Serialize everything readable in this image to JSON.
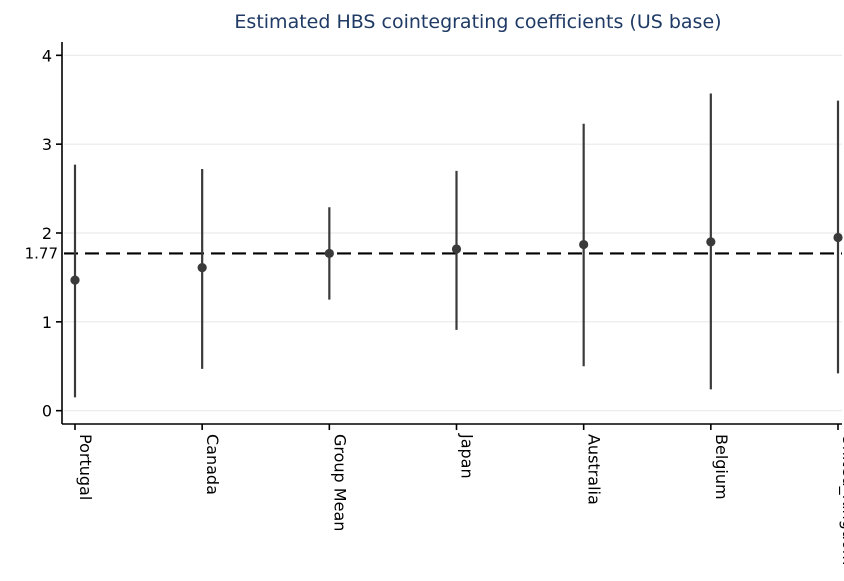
{
  "chart_data": {
    "type": "scatter",
    "title": "Estimated HBS cointegrating coefficients (US base)",
    "xlabel": "",
    "ylabel": "",
    "categories": [
      "Portugal",
      "Canada",
      "Group Mean",
      "Japan",
      "Australia",
      "Belgium",
      "United_Kingdom"
    ],
    "values": [
      1.47,
      1.61,
      1.77,
      1.82,
      1.87,
      1.9,
      1.95
    ],
    "ci_low": [
      0.15,
      0.47,
      1.25,
      0.91,
      0.5,
      0.24,
      0.42
    ],
    "ci_high": [
      2.77,
      2.72,
      2.29,
      2.7,
      3.23,
      3.57,
      3.49
    ],
    "reference_line": {
      "value": 1.77,
      "label": "1.77"
    },
    "yticks": [
      0,
      1,
      2,
      3,
      4
    ],
    "ylim": [
      -0.15,
      4.15
    ],
    "grid": true,
    "colors": {
      "title": "#1f3a64",
      "marker": "#3a3a3a",
      "grid": "#eaeaea"
    }
  }
}
